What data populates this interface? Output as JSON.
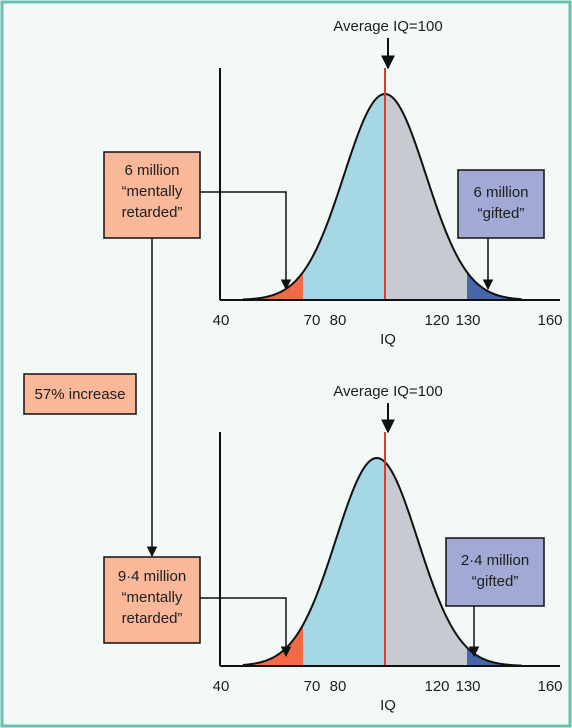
{
  "colors": {
    "frame": "#6bbfae",
    "bg": "#f2f9f7",
    "orange_box": "#f9b89a",
    "blue_box": "#a1a9d4",
    "left_tail": "#f26a45",
    "light_blue": "#a6d7e5",
    "grey": "#c5cbd0",
    "right_tail": "#4666a8",
    "mean_line": "#e23a2a"
  },
  "increase_label": "57% increase",
  "panels": [
    {
      "id": "top",
      "mean_label": "Average IQ=100",
      "x_axis_label": "IQ",
      "x_ticks": [
        "40",
        "70",
        "80",
        "120",
        "130",
        "160"
      ],
      "retarded_box": [
        "6 million",
        "“mentally",
        "retarded”"
      ],
      "gifted_box": [
        "6 million",
        "“gifted”"
      ],
      "distribution": {
        "mean": 100,
        "sd": 15
      }
    },
    {
      "id": "bottom",
      "mean_label": "Average IQ=100",
      "x_axis_label": "IQ",
      "x_ticks": [
        "40",
        "70",
        "80",
        "120",
        "130",
        "160"
      ],
      "retarded_box": [
        "9·4 million",
        "“mentally",
        "retarded”"
      ],
      "gifted_box": [
        "2·4 million",
        "“gifted”"
      ],
      "distribution": {
        "mean": 97,
        "sd": 15
      }
    }
  ]
}
